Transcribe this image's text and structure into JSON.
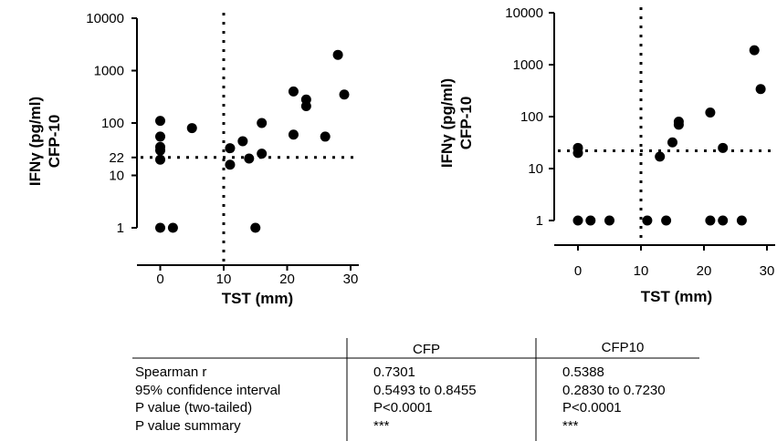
{
  "chart_data": [
    {
      "type": "scatter",
      "panel": "left",
      "ylabel_line1": "IFNγ (pg/ml)",
      "ylabel_line2": "CFP-10",
      "xlabel": "TST (mm)",
      "ylog": true,
      "ylim": [
        0.8,
        10000
      ],
      "xlim": [
        -2,
        31
      ],
      "yticks": [
        {
          "value": 1,
          "label": "1"
        },
        {
          "value": 10,
          "label": "10"
        },
        {
          "value": 22,
          "label": "22"
        },
        {
          "value": 100,
          "label": "100"
        },
        {
          "value": 1000,
          "label": "1000"
        },
        {
          "value": 10000,
          "label": "10000"
        }
      ],
      "xticks": [
        {
          "value": 0,
          "label": "0"
        },
        {
          "value": 10,
          "label": "10"
        },
        {
          "value": 20,
          "label": "20"
        },
        {
          "value": 30,
          "label": "30"
        }
      ],
      "cutoff_x": 10,
      "cutoff_y": 22,
      "points": [
        {
          "x": 0,
          "y": 110
        },
        {
          "x": 0,
          "y": 55
        },
        {
          "x": 0,
          "y": 35
        },
        {
          "x": 0,
          "y": 30
        },
        {
          "x": 0,
          "y": 20
        },
        {
          "x": 0,
          "y": 1
        },
        {
          "x": 2,
          "y": 1
        },
        {
          "x": 5,
          "y": 80
        },
        {
          "x": 11,
          "y": 33
        },
        {
          "x": 11,
          "y": 16
        },
        {
          "x": 13,
          "y": 45
        },
        {
          "x": 14,
          "y": 21
        },
        {
          "x": 15,
          "y": 1
        },
        {
          "x": 16,
          "y": 100
        },
        {
          "x": 16,
          "y": 26
        },
        {
          "x": 21,
          "y": 400
        },
        {
          "x": 21,
          "y": 60
        },
        {
          "x": 23,
          "y": 280
        },
        {
          "x": 23,
          "y": 210
        },
        {
          "x": 26,
          "y": 55
        },
        {
          "x": 28,
          "y": 2000
        },
        {
          "x": 29,
          "y": 350
        }
      ]
    },
    {
      "type": "scatter",
      "panel": "right",
      "ylabel_line1": "IFNγ (pg/ml)",
      "ylabel_line2": "CFP-10",
      "xlabel": "TST (mm)",
      "ylog": true,
      "ylim": [
        0.8,
        10000
      ],
      "xlim": [
        -2,
        31
      ],
      "yticks": [
        {
          "value": 1,
          "label": "1"
        },
        {
          "value": 10,
          "label": "10"
        },
        {
          "value": 100,
          "label": "100"
        },
        {
          "value": 1000,
          "label": "1000"
        },
        {
          "value": 10000,
          "label": "10000"
        }
      ],
      "xticks": [
        {
          "value": 0,
          "label": "0"
        },
        {
          "value": 10,
          "label": "10"
        },
        {
          "value": 20,
          "label": "20"
        },
        {
          "value": 30,
          "label": "30"
        }
      ],
      "cutoff_x": 10,
      "cutoff_y": 22,
      "points": [
        {
          "x": 0,
          "y": 25
        },
        {
          "x": 0,
          "y": 20
        },
        {
          "x": 0,
          "y": 1
        },
        {
          "x": 2,
          "y": 1
        },
        {
          "x": 5,
          "y": 1
        },
        {
          "x": 11,
          "y": 1
        },
        {
          "x": 13,
          "y": 17
        },
        {
          "x": 14,
          "y": 1
        },
        {
          "x": 15,
          "y": 32
        },
        {
          "x": 16,
          "y": 80
        },
        {
          "x": 16,
          "y": 70
        },
        {
          "x": 21,
          "y": 120
        },
        {
          "x": 21,
          "y": 1
        },
        {
          "x": 23,
          "y": 25
        },
        {
          "x": 23,
          "y": 1
        },
        {
          "x": 26,
          "y": 1
        },
        {
          "x": 28,
          "y": 1900
        },
        {
          "x": 29,
          "y": 340
        }
      ]
    }
  ],
  "stats_table": {
    "headers": [
      "",
      "CFP",
      "CFP10"
    ],
    "rows": [
      {
        "label": "Spearman r",
        "cfp": "0.7301",
        "cfp10": "0.5388"
      },
      {
        "label": "  95% confidence interval",
        "cfp": "0.5493 to 0.8455",
        "cfp10": "0.2830 to 0.7230"
      },
      {
        "label": "P value (two-tailed)",
        "cfp": "P<0.0001",
        "cfp10": "P<0.0001"
      },
      {
        "label": "  P value summary",
        "cfp": "***",
        "cfp10": "***"
      }
    ]
  }
}
